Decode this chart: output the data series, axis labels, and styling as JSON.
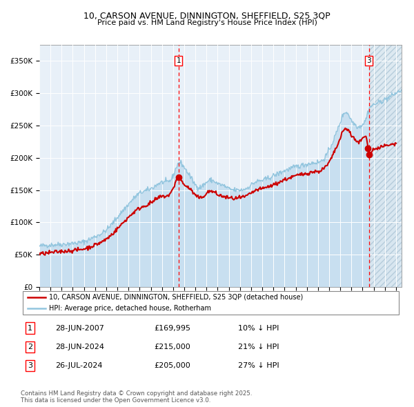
{
  "title_line1": "10, CARSON AVENUE, DINNINGTON, SHEFFIELD, S25 3QP",
  "title_line2": "Price paid vs. HM Land Registry's House Price Index (HPI)",
  "hpi_color": "#92c5de",
  "hpi_fill_color": "#c8dff0",
  "price_color": "#cc0000",
  "bg_color": "#e8f0f8",
  "grid_color": "#ffffff",
  "ylim": [
    0,
    375000
  ],
  "yticks": [
    0,
    50000,
    100000,
    150000,
    200000,
    250000,
    300000,
    350000
  ],
  "ytick_labels": [
    "£0",
    "£50K",
    "£100K",
    "£150K",
    "£200K",
    "£250K",
    "£300K",
    "£350K"
  ],
  "xlim_start": 1995.0,
  "xlim_end": 2027.5,
  "sale1_date": 2007.49,
  "sale1_price": 169995,
  "sale2_date": 2024.49,
  "sale2_price": 215000,
  "sale3_date": 2024.56,
  "sale3_price": 205000,
  "legend_label1": "10, CARSON AVENUE, DINNINGTON, SHEFFIELD, S25 3QP (detached house)",
  "legend_label2": "HPI: Average price, detached house, Rotherham",
  "table_entries": [
    {
      "num": "1",
      "date": "28-JUN-2007",
      "price": "£169,995",
      "pct": "10% ↓ HPI"
    },
    {
      "num": "2",
      "date": "28-JUN-2024",
      "price": "£215,000",
      "pct": "21% ↓ HPI"
    },
    {
      "num": "3",
      "date": "26-JUL-2024",
      "price": "£205,000",
      "pct": "27% ↓ HPI"
    }
  ],
  "footer": "Contains HM Land Registry data © Crown copyright and database right 2025.\nThis data is licensed under the Open Government Licence v3.0."
}
